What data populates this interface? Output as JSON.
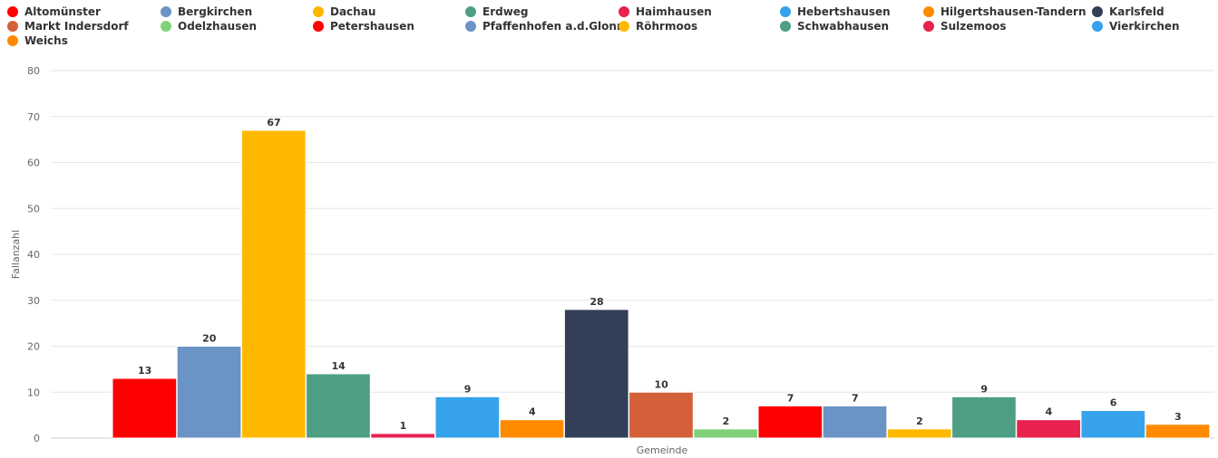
{
  "chart_data": {
    "type": "bar",
    "xlabel": "Gemeinde",
    "ylabel": "Fallanzahl",
    "ylim": [
      0,
      80
    ],
    "yticks": [
      0,
      10,
      20,
      30,
      40,
      50,
      60,
      70,
      80
    ],
    "grid": true,
    "legend_position": "top",
    "series": [
      {
        "name": "Altomünster",
        "value": 13,
        "color": "#ff0000"
      },
      {
        "name": "Bergkirchen",
        "value": 20,
        "color": "#6a93c6"
      },
      {
        "name": "Dachau",
        "value": 67,
        "color": "#ffb800"
      },
      {
        "name": "Erdweg",
        "value": 14,
        "color": "#4e9e84"
      },
      {
        "name": "Haimhausen",
        "value": 1,
        "color": "#e8214e"
      },
      {
        "name": "Hebertshausen",
        "value": 9,
        "color": "#36a2eb"
      },
      {
        "name": "Hilgertshausen-Tandern",
        "value": 4,
        "color": "#ff8a00"
      },
      {
        "name": "Karlsfeld",
        "value": 28,
        "color": "#323f57"
      },
      {
        "name": "Markt Indersdorf",
        "value": 10,
        "color": "#d4603a"
      },
      {
        "name": "Odelzhausen",
        "value": 2,
        "color": "#7fd27a"
      },
      {
        "name": "Petershausen",
        "value": 7,
        "color": "#ff0000"
      },
      {
        "name": "Pfaffenhofen a.d.Glonn",
        "value": 7,
        "color": "#6a93c6"
      },
      {
        "name": "Röhrmoos",
        "value": 2,
        "color": "#ffb800"
      },
      {
        "name": "Schwabhausen",
        "value": 9,
        "color": "#4e9e84"
      },
      {
        "name": "Sulzemoos",
        "value": 4,
        "color": "#e8214e"
      },
      {
        "name": "Vierkirchen",
        "value": 6,
        "color": "#36a2eb"
      },
      {
        "name": "Weichs",
        "value": 3,
        "color": "#ff8a00"
      }
    ]
  }
}
